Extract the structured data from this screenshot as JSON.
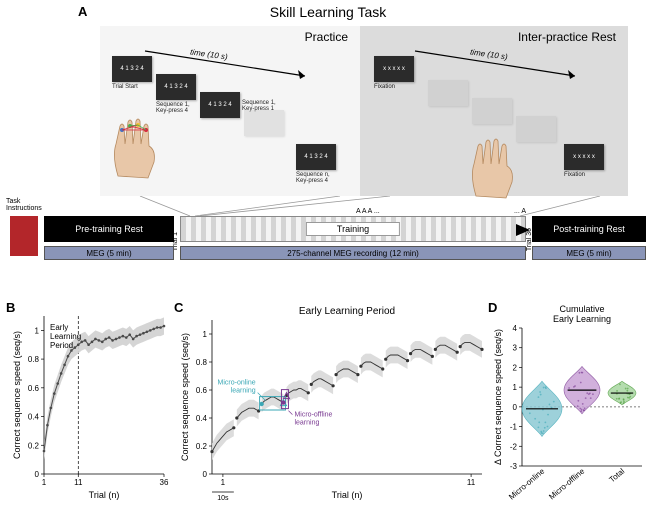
{
  "panelA": {
    "title": "Skill Learning Task",
    "label": "A",
    "practice": {
      "title": "Practice",
      "time_label": "time (10 s)",
      "screens": [
        {
          "text": "4 1 3 2 4",
          "cap": "Trial Start"
        },
        {
          "text": "4 1 3 2 4",
          "cap": "Sequence 1,\nKey-press 4"
        },
        {
          "text": "4 1 3 2 4",
          "cap": "Sequence 1,\nKey-press 1"
        },
        {
          "text": "4 1 3 2 4",
          "cap": "Sequence n,\nKey-press 4"
        }
      ]
    },
    "rest": {
      "title": "Inter-practice Rest",
      "time_label": "time (10 s)",
      "screens": [
        {
          "text": "x x x x x",
          "cap": "Fixation"
        },
        {
          "text": "x x x x x",
          "cap": "Fixation"
        }
      ]
    },
    "task_instructions": "Task\nInstructions",
    "pretrain": "Pre-training Rest",
    "training": "Training",
    "posttrain": "Post-training Rest",
    "trial1": "Trial 1",
    "trial36": "Trial 36",
    "AAA": "A A A ...",
    "AAAr": "... A",
    "meg_side": "MEG (5 min)",
    "meg_mid": "275-channel MEG recording (12 min)"
  },
  "panelB": {
    "label": "B",
    "early_label": "Early\nLearning\nPeriod",
    "xlabel": "Trial (n)",
    "ylabel": "Correct sequence speed (seq/s)",
    "xlim": [
      1,
      36
    ],
    "xticks": [
      1,
      11,
      36
    ],
    "ylim": [
      0,
      1.1
    ],
    "yticks": [
      0,
      0.2,
      0.4,
      0.6,
      0.8,
      1.0
    ],
    "vline_x": 11,
    "data_y": [
      0.16,
      0.34,
      0.46,
      0.56,
      0.63,
      0.7,
      0.76,
      0.82,
      0.86,
      0.88,
      0.9,
      0.92,
      0.93,
      0.9,
      0.92,
      0.94,
      0.93,
      0.92,
      0.94,
      0.95,
      0.93,
      0.94,
      0.95,
      0.96,
      0.95,
      0.97,
      0.94,
      0.96,
      0.97,
      0.98,
      0.99,
      1.0,
      1.01,
      1.02,
      1.02,
      1.03
    ],
    "band_halfwidth": 0.06,
    "line_color": "#4a4a4a",
    "band_color": "#d0d0d0",
    "marker_color": "#4a4a4a"
  },
  "panelC": {
    "label": "C",
    "title": "Early Learning Period",
    "xlabel": "Trial (n)",
    "ylabel": "Correct sequence speed (seq/s)",
    "xlim": [
      1,
      11
    ],
    "ylim": [
      0,
      1.1
    ],
    "yticks": [
      0,
      0.2,
      0.4,
      0.6,
      0.8,
      1.0
    ],
    "xticks": [
      1,
      11
    ],
    "micro_online_label": "Micro-online\nlearning",
    "micro_offline_label": "Micro-offline\nlearning",
    "online_color": "#3aa7b5",
    "offline_color": "#7a3b92",
    "ten_s": "10s",
    "trials": [
      {
        "points": [
          0.16,
          0.19,
          0.22,
          0.24,
          0.26,
          0.28,
          0.3,
          0.31,
          0.32,
          0.33
        ]
      },
      {
        "points": [
          0.4,
          0.42,
          0.44,
          0.45,
          0.46,
          0.47,
          0.47,
          0.47,
          0.46,
          0.45
        ]
      },
      {
        "points": [
          0.5,
          0.52,
          0.53,
          0.54,
          0.55,
          0.55,
          0.54,
          0.53,
          0.52,
          0.51
        ]
      },
      {
        "points": [
          0.56,
          0.58,
          0.59,
          0.6,
          0.6,
          0.61,
          0.61,
          0.6,
          0.59,
          0.58
        ]
      },
      {
        "points": [
          0.64,
          0.66,
          0.67,
          0.68,
          0.68,
          0.67,
          0.66,
          0.65,
          0.64,
          0.63
        ]
      },
      {
        "points": [
          0.71,
          0.73,
          0.74,
          0.75,
          0.75,
          0.75,
          0.74,
          0.73,
          0.72,
          0.71
        ]
      },
      {
        "points": [
          0.77,
          0.79,
          0.8,
          0.8,
          0.8,
          0.79,
          0.78,
          0.77,
          0.76,
          0.75
        ]
      },
      {
        "points": [
          0.82,
          0.84,
          0.85,
          0.85,
          0.85,
          0.85,
          0.84,
          0.83,
          0.82,
          0.81
        ]
      },
      {
        "points": [
          0.86,
          0.88,
          0.89,
          0.89,
          0.89,
          0.88,
          0.87,
          0.86,
          0.85,
          0.84
        ]
      },
      {
        "points": [
          0.89,
          0.91,
          0.92,
          0.92,
          0.92,
          0.91,
          0.9,
          0.89,
          0.88,
          0.87
        ]
      },
      {
        "points": [
          0.91,
          0.93,
          0.94,
          0.94,
          0.94,
          0.93,
          0.92,
          0.91,
          0.9,
          0.89
        ]
      }
    ],
    "band_halfwidth": 0.06,
    "line_color": "#333",
    "band_color": "#d8d8d8"
  },
  "panelD": {
    "label": "D",
    "title": "Cumulative\nEarly Learning",
    "ylabel": "Δ Correct sequence speed (seq/s)",
    "ylim": [
      -3,
      4
    ],
    "yticks": [
      -3,
      -2,
      -1,
      0,
      1,
      2,
      3,
      4
    ],
    "categories": [
      "Micro-online",
      "Micro-offline",
      "Total"
    ],
    "violins": [
      {
        "color": "#8cc9d4",
        "stroke": "#3aa7b5",
        "median": -0.1,
        "spread": 1.4,
        "width": 20
      },
      {
        "color": "#c9a3d6",
        "stroke": "#7a3b92",
        "median": 0.85,
        "spread": 1.2,
        "width": 18
      },
      {
        "color": "#a8d6a0",
        "stroke": "#4c9c3c",
        "median": 0.7,
        "spread": 0.6,
        "width": 14
      }
    ],
    "zero_line": "#555"
  }
}
